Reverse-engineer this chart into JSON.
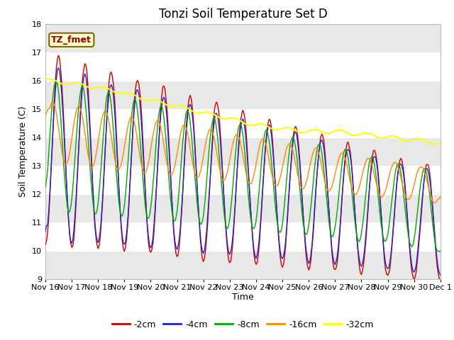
{
  "title": "Tonzi Soil Temperature Set D",
  "ylabel": "Soil Temperature (C)",
  "xlabel": "Time",
  "ylim": [
    9.0,
    18.0
  ],
  "yticks": [
    9.0,
    10.0,
    11.0,
    12.0,
    13.0,
    14.0,
    15.0,
    16.0,
    17.0,
    18.0
  ],
  "xtick_labels": [
    "Nov 16",
    "Nov 17",
    "Nov 18",
    "Nov 19",
    "Nov 20",
    "Nov 21",
    "Nov 22",
    "Nov 23",
    "Nov 24",
    "Nov 25",
    "Nov 26",
    "Nov 27",
    "Nov 28",
    "Nov 29",
    "Nov 30",
    "Dec 1"
  ],
  "label_fmet": "TZ_fmet",
  "legend_entries": [
    "-2cm",
    "-4cm",
    "-8cm",
    "-16cm",
    "-32cm"
  ],
  "line_colors": [
    "#cc0000",
    "#2222cc",
    "#00aa00",
    "#ff8800",
    "#ffff00"
  ],
  "bg_color": "#ffffff",
  "band_color": "#e8e8e8",
  "title_fontsize": 12,
  "axis_fontsize": 9,
  "tick_fontsize": 8
}
